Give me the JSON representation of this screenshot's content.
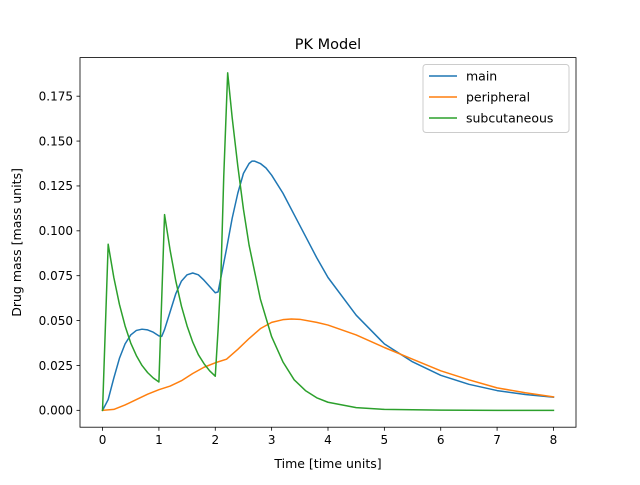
{
  "chart_data": {
    "type": "line",
    "title": "PK Model",
    "xlabel": "Time [time units]",
    "ylabel": "Drug mass [mass units]",
    "xlim": [
      -0.4,
      8.4
    ],
    "ylim": [
      -0.0094,
      0.1965
    ],
    "xticks": [
      0,
      1,
      2,
      3,
      4,
      5,
      6,
      7,
      8
    ],
    "xtick_labels": [
      "0",
      "1",
      "2",
      "3",
      "4",
      "5",
      "6",
      "7",
      "8"
    ],
    "yticks": [
      0.0,
      0.025,
      0.05,
      0.075,
      0.1,
      0.125,
      0.15,
      0.175
    ],
    "ytick_labels": [
      "0.000",
      "0.025",
      "0.050",
      "0.075",
      "0.100",
      "0.125",
      "0.150",
      "0.175"
    ],
    "grid": false,
    "legend_position": "upper right",
    "series": [
      {
        "name": "main",
        "color": "#1f77b4",
        "points": [
          [
            0.0,
            0.0
          ],
          [
            0.1,
            0.006
          ],
          [
            0.2,
            0.018
          ],
          [
            0.3,
            0.029
          ],
          [
            0.4,
            0.037
          ],
          [
            0.5,
            0.042
          ],
          [
            0.6,
            0.0445
          ],
          [
            0.7,
            0.0452
          ],
          [
            0.8,
            0.0448
          ],
          [
            0.9,
            0.0435
          ],
          [
            1.0,
            0.0415
          ],
          [
            1.05,
            0.0412
          ],
          [
            1.1,
            0.045
          ],
          [
            1.2,
            0.055
          ],
          [
            1.3,
            0.065
          ],
          [
            1.4,
            0.072
          ],
          [
            1.5,
            0.0755
          ],
          [
            1.6,
            0.0765
          ],
          [
            1.7,
            0.0755
          ],
          [
            1.8,
            0.0725
          ],
          [
            1.9,
            0.069
          ],
          [
            2.0,
            0.0655
          ],
          [
            2.05,
            0.066
          ],
          [
            2.1,
            0.074
          ],
          [
            2.2,
            0.09
          ],
          [
            2.3,
            0.107
          ],
          [
            2.4,
            0.121
          ],
          [
            2.5,
            0.132
          ],
          [
            2.6,
            0.1375
          ],
          [
            2.65,
            0.1388
          ],
          [
            2.7,
            0.1388
          ],
          [
            2.8,
            0.1375
          ],
          [
            2.9,
            0.135
          ],
          [
            3.0,
            0.131
          ],
          [
            3.2,
            0.121
          ],
          [
            3.4,
            0.109
          ],
          [
            3.6,
            0.097
          ],
          [
            3.8,
            0.085
          ],
          [
            4.0,
            0.074
          ],
          [
            4.5,
            0.053
          ],
          [
            5.0,
            0.037
          ],
          [
            5.5,
            0.027
          ],
          [
            6.0,
            0.0195
          ],
          [
            6.5,
            0.0145
          ],
          [
            7.0,
            0.011
          ],
          [
            7.5,
            0.0088
          ],
          [
            8.0,
            0.0073
          ]
        ]
      },
      {
        "name": "peripheral",
        "color": "#ff7f0e",
        "points": [
          [
            0.0,
            0.0
          ],
          [
            0.2,
            0.0005
          ],
          [
            0.4,
            0.003
          ],
          [
            0.6,
            0.006
          ],
          [
            0.8,
            0.009
          ],
          [
            1.0,
            0.0115
          ],
          [
            1.2,
            0.0135
          ],
          [
            1.4,
            0.0165
          ],
          [
            1.6,
            0.0205
          ],
          [
            1.8,
            0.024
          ],
          [
            2.0,
            0.0265
          ],
          [
            2.2,
            0.0285
          ],
          [
            2.4,
            0.034
          ],
          [
            2.6,
            0.04
          ],
          [
            2.8,
            0.0455
          ],
          [
            3.0,
            0.049
          ],
          [
            3.2,
            0.0505
          ],
          [
            3.35,
            0.0509
          ],
          [
            3.5,
            0.0507
          ],
          [
            3.8,
            0.049
          ],
          [
            4.0,
            0.0475
          ],
          [
            4.5,
            0.042
          ],
          [
            5.0,
            0.035
          ],
          [
            5.5,
            0.0285
          ],
          [
            6.0,
            0.022
          ],
          [
            6.5,
            0.017
          ],
          [
            7.0,
            0.0125
          ],
          [
            7.5,
            0.0098
          ],
          [
            8.0,
            0.0075
          ]
        ]
      },
      {
        "name": "subcutaneous",
        "color": "#2ca02c",
        "points": [
          [
            0.0,
            0.0
          ],
          [
            0.1,
            0.0925
          ],
          [
            0.2,
            0.074
          ],
          [
            0.3,
            0.059
          ],
          [
            0.4,
            0.047
          ],
          [
            0.5,
            0.0375
          ],
          [
            0.6,
            0.0305
          ],
          [
            0.7,
            0.025
          ],
          [
            0.8,
            0.021
          ],
          [
            0.9,
            0.018
          ],
          [
            1.0,
            0.0158
          ],
          [
            1.1,
            0.109
          ],
          [
            1.2,
            0.089
          ],
          [
            1.3,
            0.072
          ],
          [
            1.4,
            0.058
          ],
          [
            1.5,
            0.047
          ],
          [
            1.6,
            0.038
          ],
          [
            1.7,
            0.031
          ],
          [
            1.8,
            0.026
          ],
          [
            1.9,
            0.022
          ],
          [
            2.0,
            0.019
          ],
          [
            2.05,
            0.045
          ],
          [
            2.1,
            0.075
          ],
          [
            2.15,
            0.13
          ],
          [
            2.22,
            0.188
          ],
          [
            2.3,
            0.163
          ],
          [
            2.4,
            0.136
          ],
          [
            2.5,
            0.112
          ],
          [
            2.6,
            0.092
          ],
          [
            2.8,
            0.062
          ],
          [
            3.0,
            0.041
          ],
          [
            3.2,
            0.027
          ],
          [
            3.4,
            0.017
          ],
          [
            3.6,
            0.011
          ],
          [
            3.8,
            0.007
          ],
          [
            4.0,
            0.0045
          ],
          [
            4.5,
            0.0015
          ],
          [
            5.0,
            0.0005
          ],
          [
            6.0,
            0.0001
          ],
          [
            7.0,
            0.0
          ],
          [
            8.0,
            0.0
          ]
        ]
      }
    ]
  }
}
